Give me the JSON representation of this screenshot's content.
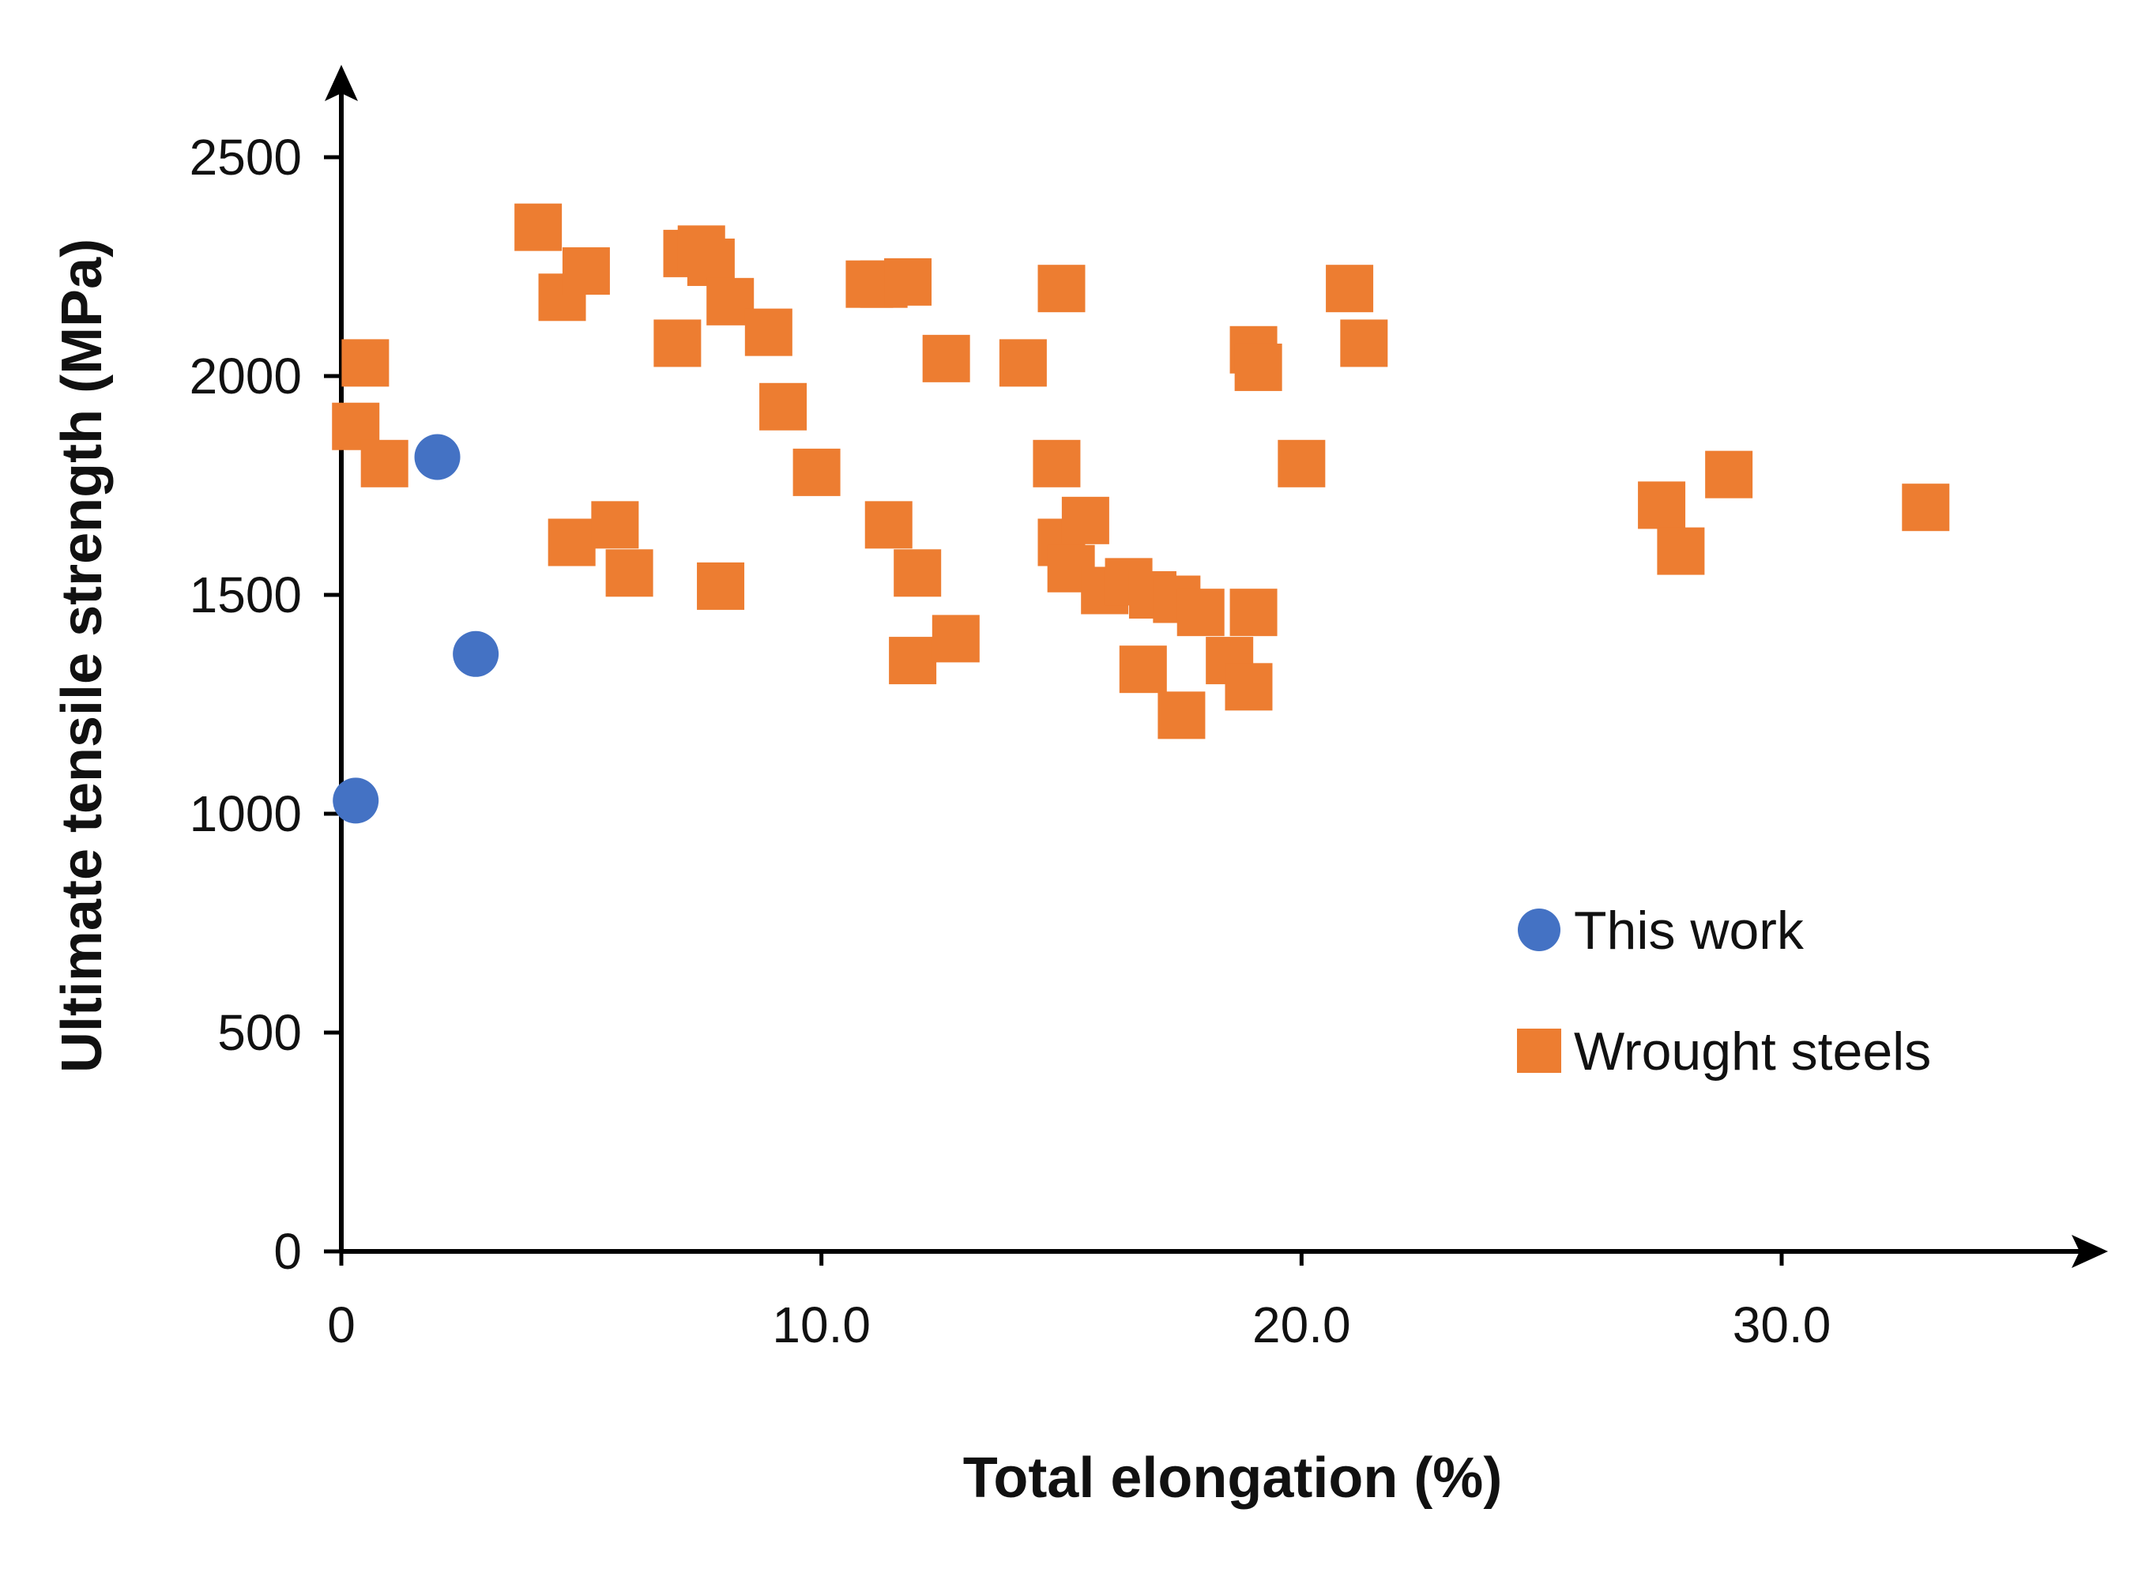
{
  "chart_data": {
    "type": "scatter",
    "title": "",
    "xlabel": "Total elongation (%)",
    "ylabel": "Ultimate tensile strength (MPa)",
    "xlim": [
      0,
      37
    ],
    "ylim": [
      0,
      2650
    ],
    "grid": false,
    "legend_position": "right",
    "x_ticks": [
      {
        "value": 0,
        "label": "0"
      },
      {
        "value": 10,
        "label": "10.0"
      },
      {
        "value": 20,
        "label": "20.0"
      },
      {
        "value": 30,
        "label": "30.0"
      }
    ],
    "y_ticks": [
      {
        "value": 0,
        "label": "0"
      },
      {
        "value": 500,
        "label": "500"
      },
      {
        "value": 1000,
        "label": "1000"
      },
      {
        "value": 1500,
        "label": "1500"
      },
      {
        "value": 2000,
        "label": "2000"
      },
      {
        "value": 2500,
        "label": "2500"
      }
    ],
    "series": [
      {
        "name": "This work",
        "marker": "circle",
        "color": "#4472C4",
        "points": [
          [
            0.3,
            1030
          ],
          [
            2.0,
            1815
          ],
          [
            2.8,
            1365
          ]
        ]
      },
      {
        "name": "Wrought steels",
        "marker": "square",
        "color": "#ED7D31",
        "points": [
          [
            0.3,
            1885
          ],
          [
            0.5,
            2030
          ],
          [
            0.9,
            1800
          ],
          [
            4.1,
            2340
          ],
          [
            4.6,
            2180
          ],
          [
            5.1,
            2240
          ],
          [
            4.8,
            1620
          ],
          [
            5.7,
            1660
          ],
          [
            6.0,
            1550
          ],
          [
            7.0,
            2075
          ],
          [
            7.2,
            2280
          ],
          [
            7.5,
            2290
          ],
          [
            7.7,
            2260
          ],
          [
            8.1,
            2170
          ],
          [
            8.9,
            2100
          ],
          [
            9.2,
            1930
          ],
          [
            9.9,
            1780
          ],
          [
            7.9,
            1520
          ],
          [
            11.0,
            2210
          ],
          [
            11.3,
            2210
          ],
          [
            11.8,
            2215
          ],
          [
            11.4,
            1660
          ],
          [
            12.0,
            1550
          ],
          [
            11.9,
            1350
          ],
          [
            12.6,
            2040
          ],
          [
            12.8,
            1400
          ],
          [
            14.2,
            2030
          ],
          [
            15.0,
            2200
          ],
          [
            14.9,
            1800
          ],
          [
            15.0,
            1620
          ],
          [
            15.2,
            1560
          ],
          [
            15.5,
            1670
          ],
          [
            15.9,
            1510
          ],
          [
            16.4,
            1530
          ],
          [
            16.9,
            1500
          ],
          [
            17.4,
            1490
          ],
          [
            17.9,
            1460
          ],
          [
            16.7,
            1330
          ],
          [
            17.5,
            1225
          ],
          [
            18.5,
            1350
          ],
          [
            18.9,
            1290
          ],
          [
            19.0,
            1460
          ],
          [
            19.0,
            2060
          ],
          [
            19.1,
            2020
          ],
          [
            20.0,
            1800
          ],
          [
            21.0,
            2200
          ],
          [
            21.3,
            2075
          ],
          [
            27.5,
            1705
          ],
          [
            27.9,
            1600
          ],
          [
            28.9,
            1775
          ],
          [
            33.0,
            1700
          ]
        ]
      }
    ]
  }
}
